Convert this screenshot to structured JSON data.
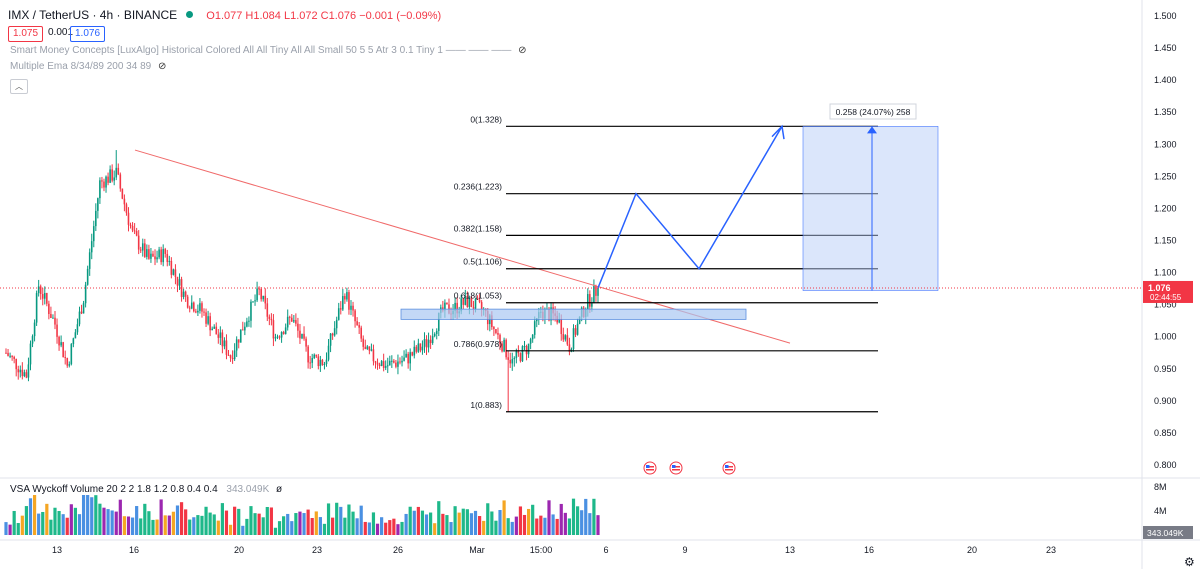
{
  "header": {
    "symbol": "IMX / TetherUS · 4h · BINANCE",
    "ohlc": "O1.077 H1.084 L1.072 C1.076 −0.001 (−0.09%)",
    "bid": "1.075",
    "spread": "0.001",
    "ask": "1.076"
  },
  "indicators": {
    "smc": "Smart Money Concepts [LuxAlgo] Historical Colored All All Tiny All All Small 50 5 5 Atr 3 0.1 Tiny 1 —— —— ——",
    "ema": "Multiple Ema 8/34/89 200 34 89",
    "vsa": "VSA Wyckoff Volume 20 2 2 1.8 1.2 0.8 0.4 0.4",
    "vsa_value": "343.049K",
    "vsa_zero": "ø"
  },
  "colors": {
    "up": "#089981",
    "down": "#f23645",
    "fib": "#000000",
    "trendline": "#f06a6a",
    "zone": "#a9c8f2",
    "projection": "#2962ff",
    "range": "#b7cdf7",
    "vol_green": "#1eb88a",
    "vol_red": "#f23645",
    "vol_blue": "#4a90e2",
    "vol_orange": "#f5a623",
    "vol_purple": "#9c27b0"
  },
  "chart_data": {
    "type": "candlestick",
    "y_ticks": [
      "1.500",
      "1.450",
      "1.400",
      "1.350",
      "1.300",
      "1.250",
      "1.200",
      "1.150",
      "1.100",
      "1.050",
      "1.000",
      "0.950",
      "0.900",
      "0.850",
      "0.800"
    ],
    "ylim": [
      0.79,
      1.515
    ],
    "x_ticks": [
      "13",
      "16",
      "20",
      "23",
      "26",
      "Mar",
      "15:00",
      "6",
      "9",
      "13",
      "16",
      "20",
      "23"
    ],
    "current_price": "1.076",
    "countdown": "02:44:55",
    "fib_levels": [
      {
        "label": "0(1.328)",
        "value": 1.328
      },
      {
        "label": "0.236(1.223)",
        "value": 1.223
      },
      {
        "label": "0.382(1.158)",
        "value": 1.158
      },
      {
        "label": "0.5(1.106)",
        "value": 1.106
      },
      {
        "label": "0.618(1.053)",
        "value": 1.053
      },
      {
        "label": "0.786(0.978)",
        "value": 0.978
      },
      {
        "label": "1(0.883)",
        "value": 0.883
      }
    ],
    "measurement": "0.258 (24.07%) 258",
    "volume_ticks": [
      "8M",
      "4M"
    ],
    "volume_last": "343.049K"
  }
}
